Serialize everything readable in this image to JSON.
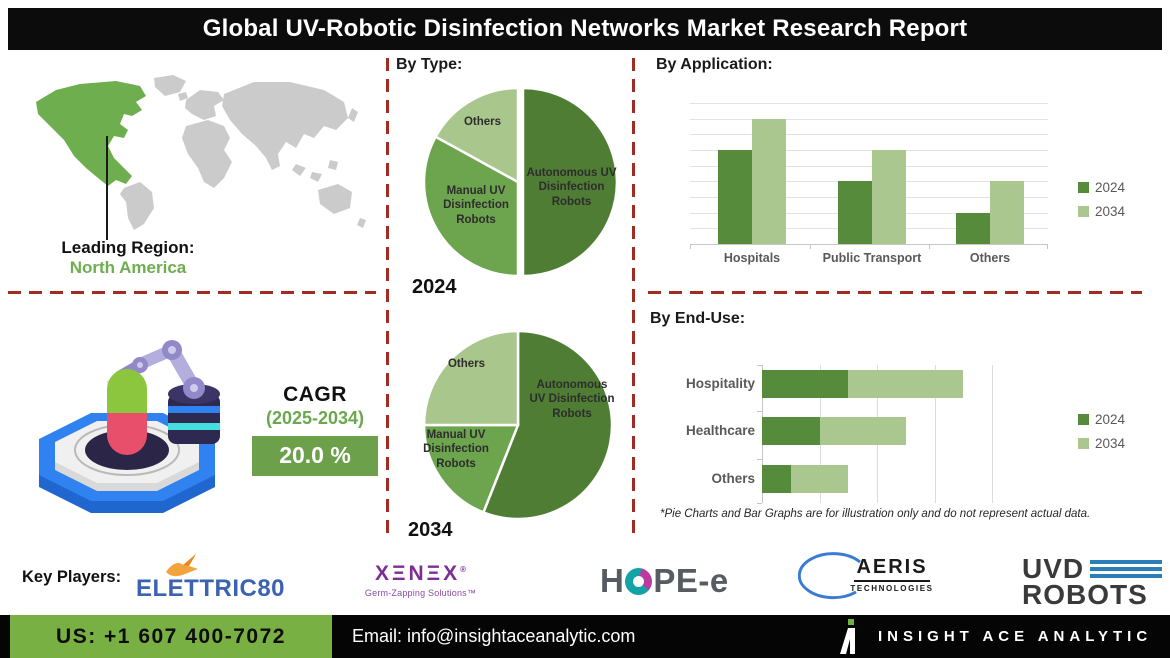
{
  "title": "Global UV-Robotic Disinfection Networks Market Research Report",
  "sections": {
    "by_type": "By Type:",
    "by_application": "By Application:",
    "by_end_use": "By End-Use:"
  },
  "leading_region": {
    "label": "Leading Region:",
    "value": "North America"
  },
  "cagr": {
    "label": "CAGR",
    "period": "(2025-2034)",
    "value": "20.0 %"
  },
  "footnote": "*Pie Charts and Bar Graphs are for illustration only and do not represent actual data.",
  "legend": {
    "items": [
      {
        "label": "2024",
        "color": "#568b3c"
      },
      {
        "label": "2034",
        "color": "#a9c78f"
      }
    ]
  },
  "chart_data": [
    {
      "type": "pie",
      "year": "2024",
      "title": "By Type - 2024",
      "slices": [
        {
          "label": "Autonomous UV Disinfection Robots",
          "pct": 50,
          "color": "#4e7d33",
          "explode": 5
        },
        {
          "label": "Manual UV Disinfection Robots",
          "pct": 33,
          "color": "#6da44e"
        },
        {
          "label": "Others",
          "pct": 17,
          "color": "#a9c68c"
        }
      ]
    },
    {
      "type": "pie",
      "year": "2034",
      "title": "By Type - 2034",
      "slices": [
        {
          "label": "Autonomous UV Disinfection Robots",
          "pct": 56,
          "color": "#4e7d33"
        },
        {
          "label": "Manual UV Disinfection Robots",
          "pct": 19,
          "color": "#6da44e"
        },
        {
          "label": "Others",
          "pct": 25,
          "color": "#a9c68c"
        }
      ]
    },
    {
      "type": "bar",
      "title": "By Application:",
      "categories": [
        "Hospitals",
        "Public Transport",
        "Others"
      ],
      "series": [
        {
          "name": "2024",
          "color": "#568b3c",
          "values": [
            6,
            4,
            2
          ]
        },
        {
          "name": "2034",
          "color": "#a9c78f",
          "values": [
            8,
            6,
            4
          ]
        }
      ],
      "ylim": [
        0,
        9
      ],
      "gridlines": 10,
      "legend_position": "right"
    },
    {
      "type": "stacked-hbar",
      "title": "By End-Use:",
      "categories": [
        "Hospitality",
        "Healthcare",
        "Others"
      ],
      "series": [
        {
          "name": "2024",
          "color": "#568b3c",
          "values": [
            1.5,
            1.0,
            0.5
          ]
        },
        {
          "name": "2034",
          "color": "#a9c78f",
          "values": [
            2.0,
            1.5,
            1.0
          ]
        }
      ],
      "xlim": [
        0,
        4
      ],
      "gridlines": 5,
      "legend_position": "right"
    }
  ],
  "key_players": {
    "label": "Key Players:",
    "logos": [
      {
        "name": "Elettric80",
        "text": "ELETTRIC80"
      },
      {
        "name": "Xenex",
        "text": "XΞNΞX",
        "reg": "®",
        "tagline": "Germ-Zapping Solutions™"
      },
      {
        "name": "HOPE-e",
        "left": "H",
        "right": "PE-e"
      },
      {
        "name": "Aeris Technologies",
        "text": "AERIS",
        "sub": "TECHNOLOGIES"
      },
      {
        "name": "UVD Robots",
        "line1": "UVD",
        "line2": "ROBOTS"
      }
    ]
  },
  "footer": {
    "phone": "US: +1 607 400-7072",
    "email": "Email: info@insightaceanalytic.com",
    "brand": "INSIGHT ACE ANALYTIC"
  }
}
